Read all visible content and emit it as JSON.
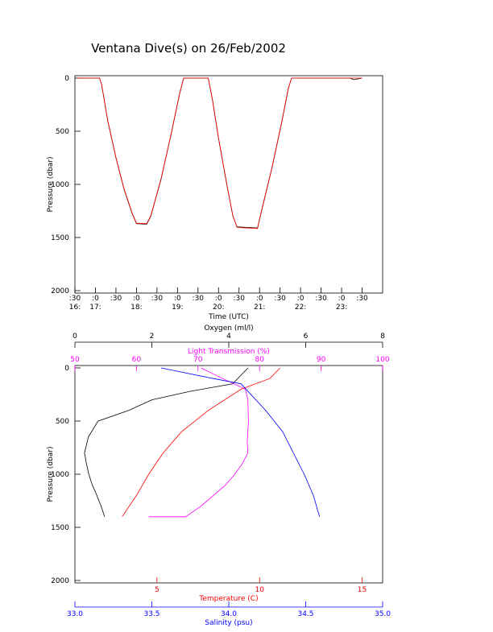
{
  "chart_data": [
    {
      "type": "line",
      "title": "Ventana Dive(s) on 26/Feb/2002",
      "xlabel": "Time (UTC)",
      "ylabel": "Pressure (dbar)",
      "xlim": [
        16.5,
        24.0
      ],
      "ylim": [
        0,
        2000
      ],
      "y_inverted": true,
      "xticks": [
        {
          "value": 16.5,
          "label": ":30\n16:"
        },
        {
          "value": 17,
          "label": ":0\n17:"
        },
        {
          "value": 17.5,
          "label": ":30"
        },
        {
          "value": 18,
          "label": ":0\n18:"
        },
        {
          "value": 18.5,
          "label": ":30"
        },
        {
          "value": 19,
          "label": ":0\n19:"
        },
        {
          "value": 19.5,
          "label": ":30"
        },
        {
          "value": 20,
          "label": ":0\n20:"
        },
        {
          "value": 20.5,
          "label": ":30"
        },
        {
          "value": 21,
          "label": ":0\n21:"
        },
        {
          "value": 21.5,
          "label": ":30"
        },
        {
          "value": 22,
          "label": ":0\n22:"
        },
        {
          "value": 22.5,
          "label": ":30"
        },
        {
          "value": 23,
          "label": ":0\n23:"
        },
        {
          "value": 23.5,
          "label": ":30"
        }
      ],
      "yticks": [
        0,
        500,
        1000,
        1500,
        2000
      ],
      "series": [
        {
          "color": "#000000",
          "x": [
            16.55,
            17.1,
            17.15,
            17.3,
            17.5,
            17.7,
            17.9,
            18.0,
            18.25,
            18.35,
            18.6,
            18.85,
            19.05,
            19.15,
            19.75,
            19.85,
            20.0,
            20.2,
            20.35,
            20.45,
            20.95,
            21.05,
            21.3,
            21.55,
            21.7,
            21.78,
            23.2,
            23.3,
            23.5
          ],
          "values": [
            0,
            0,
            60,
            400,
            750,
            1050,
            1280,
            1370,
            1375,
            1300,
            950,
            520,
            150,
            0,
            0,
            200,
            570,
            1000,
            1300,
            1400,
            1410,
            1250,
            850,
            400,
            100,
            0,
            0,
            15,
            0
          ]
        },
        {
          "color": "#ff0000",
          "x": [
            16.55,
            17.1,
            17.15,
            17.3,
            17.5,
            17.7,
            17.9,
            18.0,
            18.25,
            18.35,
            18.6,
            18.85,
            19.05,
            19.15,
            19.75,
            19.85,
            20.0,
            20.2,
            20.35,
            20.45,
            20.95,
            21.05,
            21.3,
            21.55,
            21.7,
            21.78,
            23.5
          ],
          "values": [
            0,
            0,
            55,
            395,
            745,
            1045,
            1275,
            1365,
            1370,
            1295,
            945,
            515,
            145,
            0,
            0,
            195,
            565,
            995,
            1295,
            1405,
            1415,
            1245,
            845,
            395,
            95,
            0,
            0
          ]
        }
      ]
    },
    {
      "type": "profile",
      "ylabel": "Pressure (dbar)",
      "ylim": [
        0,
        2000
      ],
      "y_inverted": true,
      "yticks": [
        0,
        500,
        1000,
        1500,
        2000
      ],
      "series": [
        {
          "xlabel": "Oxygen (ml/l)",
          "color": "#000000",
          "side": "top",
          "xlim": [
            0,
            8
          ],
          "xticks": [
            0,
            2,
            4,
            6,
            8
          ],
          "x": [
            4.5,
            4.1,
            3.0,
            2.0,
            1.4,
            0.6,
            0.35,
            0.25,
            0.3,
            0.36,
            0.45,
            0.57,
            0.68,
            0.77
          ],
          "values": [
            0,
            150,
            220,
            300,
            400,
            500,
            650,
            800,
            900,
            1000,
            1100,
            1200,
            1300,
            1400
          ]
        },
        {
          "xlabel": "Light Transmission (%)",
          "color": "#ff00ff",
          "side": "top",
          "xlim": [
            50,
            100
          ],
          "xticks": [
            50,
            60,
            70,
            80,
            90,
            100
          ],
          "x": [
            70.5,
            74,
            77.7,
            78.1,
            78.2,
            78.0,
            78.1,
            77.2,
            76.0,
            74.5,
            72.5,
            70.5,
            68,
            62
          ],
          "values": [
            0,
            100,
            200,
            300,
            500,
            700,
            800,
            900,
            1000,
            1100,
            1200,
            1300,
            1400,
            1400
          ]
        },
        {
          "xlabel": "Temperature (C)",
          "color": "#ff0000",
          "side": "bottom",
          "xlim": [
            1,
            16
          ],
          "xticks": [
            5,
            10,
            15
          ],
          "x": [
            11,
            10.5,
            9.1,
            7.5,
            6.2,
            5.3,
            4.6,
            4.0,
            3.3
          ],
          "values": [
            0,
            100,
            200,
            400,
            600,
            800,
            1000,
            1200,
            1400
          ]
        },
        {
          "xlabel": "Salinity (psu)",
          "color": "#0000ff",
          "side": "bottom",
          "xlim": [
            33,
            35
          ],
          "xticks": [
            {
              "value": 33,
              "label": "33.0"
            },
            33.5,
            {
              "value": 34,
              "label": "34.0"
            },
            34.5,
            {
              "value": 35,
              "label": "35.0"
            }
          ],
          "x": [
            33.56,
            33.9,
            34.08,
            34.24,
            34.35,
            34.42,
            34.49,
            34.55,
            34.59
          ],
          "values": [
            0,
            100,
            150,
            400,
            600,
            800,
            1000,
            1200,
            1400
          ]
        }
      ]
    }
  ]
}
